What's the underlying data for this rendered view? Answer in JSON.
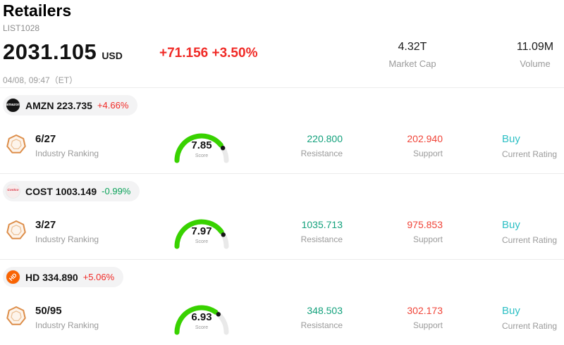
{
  "header": {
    "title": "Retailers",
    "list_id": "LIST1028",
    "price": "2031.105",
    "currency": "USD",
    "change": "+71.156 +3.50%",
    "datetime": "04/08, 09:47（ET）",
    "market_cap_value": "4.32T",
    "market_cap_label": "Market Cap",
    "volume_value": "11.09M",
    "volume_label": "Volume"
  },
  "labels": {
    "industry_ranking": "Industry Ranking",
    "score": "Score",
    "resistance": "Resistance",
    "support": "Support",
    "current_rating": "Current Rating"
  },
  "colors": {
    "up": "#f02a26",
    "down": "#0ca25a",
    "resistance": "#13a17c",
    "support": "#f04438",
    "buy": "#2fc0c5",
    "gauge_fill": "#38d200",
    "gauge_track": "#e9e9e9",
    "gauge_dot": "#141414"
  },
  "stocks": [
    {
      "ticker_price": "AMZN 223.735",
      "change": "+4.66%",
      "change_color": "#f02a26",
      "logo_text": "amazon",
      "logo_bg": "#141414",
      "logo_color": "#ffffff",
      "rank": "6/27",
      "score": 7.85,
      "score_max": 10,
      "score_text": "7.85",
      "resistance": "220.800",
      "support": "202.940",
      "rating": "Buy"
    },
    {
      "ticker_price": "COST 1003.149",
      "change": "-0.99%",
      "change_color": "#0ca25a",
      "logo_text": "Costco",
      "logo_bg": "#f7ecec",
      "logo_color": "#d93141",
      "rank": "3/27",
      "score": 7.97,
      "score_max": 10,
      "score_text": "7.97",
      "resistance": "1035.713",
      "support": "975.853",
      "rating": "Buy"
    },
    {
      "ticker_price": "HD 334.890",
      "change": "+5.06%",
      "change_color": "#f02a26",
      "logo_text": "HD",
      "logo_bg": "#f96302",
      "logo_color": "#ffffff",
      "rank": "50/95",
      "score": 6.93,
      "score_max": 10,
      "score_text": "6.93",
      "resistance": "348.503",
      "support": "302.173",
      "rating": "Buy"
    }
  ]
}
